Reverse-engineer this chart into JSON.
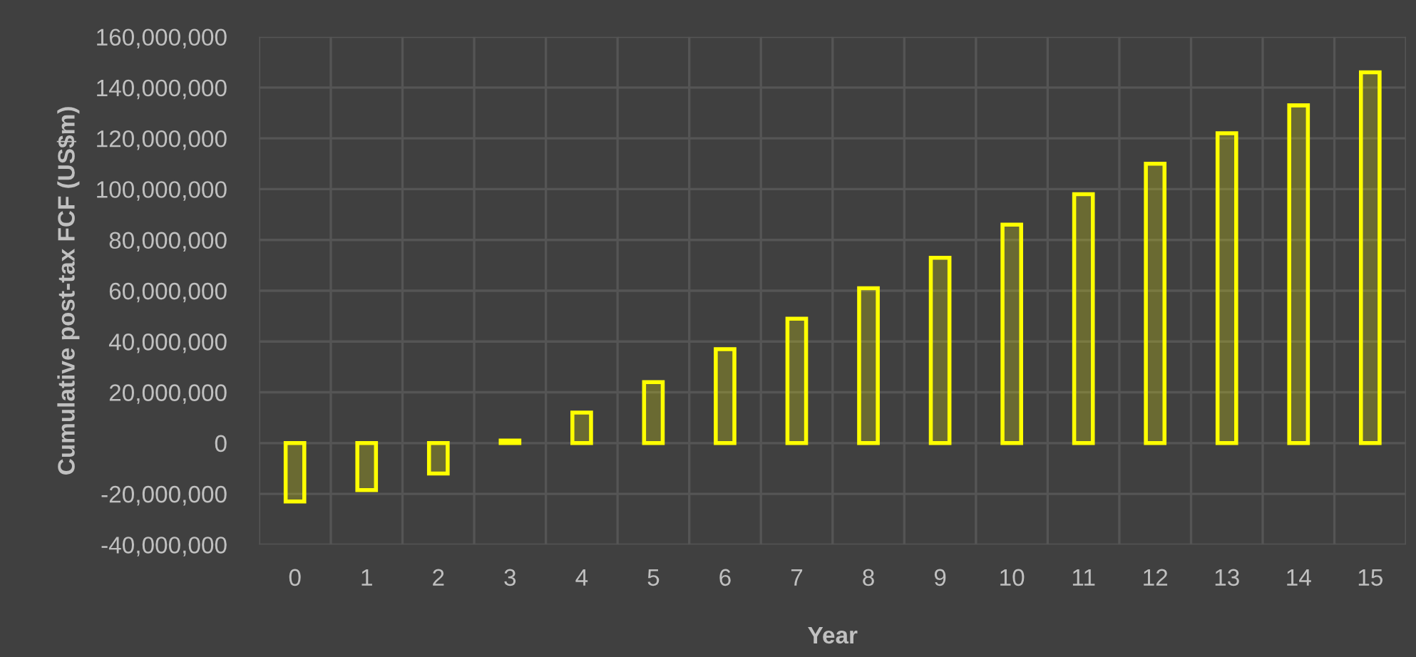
{
  "chart_data": {
    "type": "bar",
    "xlabel": "Year",
    "ylabel": "Cumulative post-tax FCF (US$m)",
    "categories": [
      "0",
      "1",
      "2",
      "3",
      "4",
      "5",
      "6",
      "7",
      "8",
      "9",
      "10",
      "11",
      "12",
      "13",
      "14",
      "15"
    ],
    "series": [
      {
        "color": "#ffff00",
        "values": [
          -23000000,
          -18500000,
          -12000000,
          1000000,
          12000000,
          24000000,
          37000000,
          49000000,
          61000000,
          73000000,
          86000000,
          98000000,
          110000000,
          122000000,
          133000000,
          146000000
        ]
      }
    ],
    "ylim": [
      -40000000,
      160000000
    ],
    "yticks": [
      {
        "value": -40000000,
        "label": "-40,000,000"
      },
      {
        "value": -20000000,
        "label": "-20,000,000"
      },
      0,
      {
        "value": 20000000,
        "label": "20,000,000"
      },
      {
        "value": 40000000,
        "label": "40,000,000"
      },
      {
        "value": 60000000,
        "label": "60,000,000"
      },
      {
        "value": 80000000,
        "label": "80,000,000"
      },
      {
        "value": 100000000,
        "label": "100,000,000"
      },
      {
        "value": 120000000,
        "label": "120,000,000"
      },
      {
        "value": 140000000,
        "label": "140,000,000"
      },
      {
        "value": 160000000,
        "label": "160,000,000"
      }
    ],
    "grid": true
  }
}
